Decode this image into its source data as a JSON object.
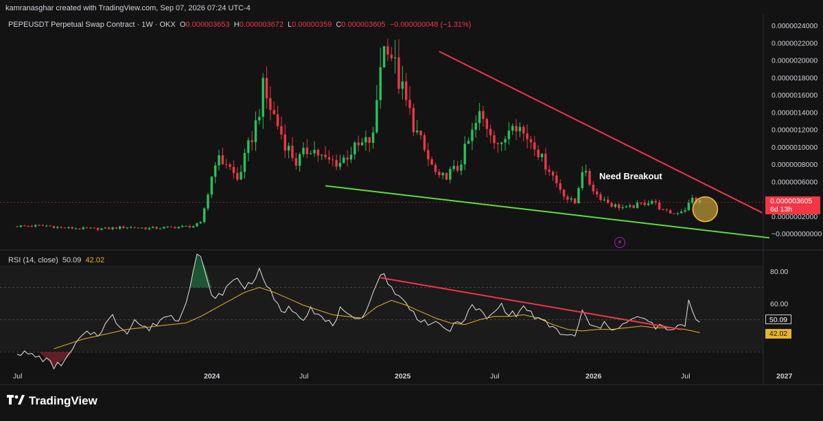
{
  "banner": "kamranasghar created with TradingView.com, Sep 07, 2026 07:24 UTC-4",
  "legend": {
    "symbol": "PEPEUSDT Perpetual Swap Contract · 1W · OKX",
    "o_label": "O",
    "o_value": "0.000003653",
    "h_label": "H",
    "h_value": "0.000003672",
    "l_label": "L",
    "l_value": "0.00000359",
    "c_label": "C",
    "c_value": "0.000003605",
    "change": "−0.000000048 (−1.31%)"
  },
  "rsi_legend": {
    "label": "RSI (14, close)",
    "rsi_value": "50.09",
    "ma_value": "42.02"
  },
  "annotation": "Need Breakout",
  "price_tag": {
    "price": "0.000003605",
    "countdown": "6d 13h"
  },
  "rsi_tags": {
    "rsi": "50.09",
    "ma": "42.02"
  },
  "footer": {
    "brand": "TradingView"
  },
  "colors": {
    "up": "#22c55e",
    "down": "#f23645",
    "resistance": "#f23645",
    "support": "#5fe03a",
    "rsi_line": "#e6e6e6",
    "rsi_ma": "#e8b32c",
    "highlight": "#f5c542"
  },
  "chart_data": [
    {
      "type": "candlestick",
      "title": "PEPEUSDT Perpetual Swap Contract · 1W · OKX",
      "price_ticks": [
        "0.0000024000",
        "0.0000022000",
        "0.0000020000",
        "0.0000018000",
        "0.0000016000",
        "0.0000014000",
        "0.0000012000",
        "0.0000010000",
        "0.0000008000",
        "0.0000006000",
        "0.0000004000",
        "0.0000002000",
        "−0.0000000000"
      ],
      "price_tick_values": [
        24,
        22,
        20,
        18,
        16,
        14,
        12,
        10,
        8,
        6,
        4,
        2,
        0
      ],
      "time_ticks": [
        "Jul",
        "2024",
        "Jul",
        "2025",
        "Jul",
        "2026",
        "Jul",
        "2027"
      ],
      "time_tick_weeks": [
        0,
        52,
        78,
        104,
        130,
        156,
        182,
        208
      ],
      "last_week": 186,
      "price_profile": [
        [
          0,
          0.85
        ],
        [
          8,
          0.9
        ],
        [
          12,
          0.65
        ],
        [
          18,
          0.55
        ],
        [
          24,
          0.55
        ],
        [
          30,
          0.75
        ],
        [
          36,
          0.6
        ],
        [
          42,
          0.7
        ],
        [
          48,
          0.85
        ],
        [
          50,
          1.2
        ],
        [
          52,
          4.6
        ],
        [
          54,
          8.5
        ],
        [
          57,
          8.2
        ],
        [
          60,
          6.2
        ],
        [
          62,
          8.6
        ],
        [
          65,
          12.6
        ],
        [
          67,
          16.5
        ],
        [
          70,
          13.5
        ],
        [
          73,
          10.5
        ],
        [
          76,
          8.2
        ],
        [
          80,
          10.0
        ],
        [
          84,
          8.4
        ],
        [
          88,
          8.2
        ],
        [
          91,
          9.5
        ],
        [
          94,
          10.2
        ],
        [
          97,
          11.0
        ],
        [
          99,
          20.0
        ],
        [
          101,
          22.5
        ],
        [
          103,
          19.0
        ],
        [
          106,
          15.0
        ],
        [
          109,
          11.5
        ],
        [
          112,
          8.5
        ],
        [
          115,
          6.2
        ],
        [
          117,
          6.8
        ],
        [
          120,
          7.5
        ],
        [
          123,
          10.5
        ],
        [
          126,
          13.5
        ],
        [
          129,
          12.0
        ],
        [
          132,
          9.8
        ],
        [
          135,
          13.6
        ],
        [
          138,
          11.5
        ],
        [
          141,
          10.5
        ],
        [
          143,
          8.5
        ],
        [
          145,
          7.5
        ],
        [
          147,
          5.8
        ],
        [
          150,
          4.0
        ],
        [
          152,
          3.5
        ],
        [
          154,
          7.5
        ],
        [
          156,
          5.8
        ],
        [
          158,
          4.5
        ],
        [
          162,
          3.3
        ],
        [
          166,
          2.9
        ],
        [
          170,
          3.4
        ],
        [
          173,
          3.8
        ],
        [
          176,
          2.6
        ],
        [
          179,
          2.3
        ],
        [
          182,
          2.8
        ],
        [
          184,
          4.0
        ],
        [
          186,
          3.6
        ]
      ],
      "resistance_line": {
        "from": [
          115,
          21.0
        ],
        "to": [
          203,
          2.4
        ]
      },
      "support_line": {
        "from": [
          84,
          5.5
        ],
        "to": [
          205,
          -0.5
        ]
      },
      "highlight": {
        "week": 186,
        "price": 2.8
      },
      "last_price": 3.605
    },
    {
      "type": "line",
      "title": "RSI (14, close)",
      "ylim": [
        20,
        100
      ],
      "y_ticks": [
        "80.00",
        "60.00"
      ],
      "y_tick_values": [
        80,
        60
      ],
      "rsi_profile": [
        [
          0,
          30
        ],
        [
          4,
          28
        ],
        [
          8,
          25
        ],
        [
          10,
          21
        ],
        [
          12,
          23
        ],
        [
          14,
          27
        ],
        [
          16,
          35
        ],
        [
          18,
          40
        ],
        [
          20,
          42
        ],
        [
          22,
          41
        ],
        [
          24,
          47
        ],
        [
          26,
          52
        ],
        [
          28,
          46
        ],
        [
          30,
          43
        ],
        [
          32,
          50
        ],
        [
          34,
          46
        ],
        [
          36,
          44
        ],
        [
          38,
          48
        ],
        [
          40,
          52
        ],
        [
          42,
          52
        ],
        [
          44,
          50
        ],
        [
          46,
          62
        ],
        [
          48,
          80
        ],
        [
          49,
          91
        ],
        [
          50,
          88
        ],
        [
          52,
          72
        ],
        [
          54,
          62
        ],
        [
          56,
          67
        ],
        [
          58,
          72
        ],
        [
          60,
          76
        ],
        [
          62,
          70
        ],
        [
          64,
          74
        ],
        [
          66,
          80
        ],
        [
          68,
          72
        ],
        [
          70,
          62
        ],
        [
          72,
          55
        ],
        [
          74,
          57
        ],
        [
          76,
          55
        ],
        [
          78,
          51
        ],
        [
          80,
          58
        ],
        [
          82,
          53
        ],
        [
          84,
          49
        ],
        [
          86,
          47
        ],
        [
          88,
          56
        ],
        [
          90,
          52
        ],
        [
          92,
          49
        ],
        [
          94,
          53
        ],
        [
          96,
          60
        ],
        [
          98,
          74
        ],
        [
          100,
          78
        ],
        [
          102,
          70
        ],
        [
          104,
          64
        ],
        [
          106,
          60
        ],
        [
          108,
          54
        ],
        [
          110,
          50
        ],
        [
          112,
          48
        ],
        [
          114,
          47
        ],
        [
          116,
          45
        ],
        [
          118,
          44
        ],
        [
          120,
          48
        ],
        [
          122,
          51
        ],
        [
          124,
          58
        ],
        [
          126,
          56
        ],
        [
          128,
          50
        ],
        [
          130,
          55
        ],
        [
          132,
          59
        ],
        [
          134,
          54
        ],
        [
          136,
          53
        ],
        [
          138,
          58
        ],
        [
          140,
          54
        ],
        [
          142,
          50
        ],
        [
          144,
          48
        ],
        [
          146,
          45
        ],
        [
          148,
          42
        ],
        [
          150,
          40
        ],
        [
          152,
          39
        ],
        [
          154,
          56
        ],
        [
          156,
          46
        ],
        [
          158,
          45
        ],
        [
          160,
          47
        ],
        [
          162,
          45
        ],
        [
          164,
          46
        ],
        [
          166,
          48
        ],
        [
          168,
          50
        ],
        [
          170,
          52
        ],
        [
          172,
          48
        ],
        [
          174,
          46
        ],
        [
          176,
          45
        ],
        [
          178,
          43
        ],
        [
          180,
          45
        ],
        [
          182,
          47
        ],
        [
          183,
          63
        ],
        [
          184,
          55
        ],
        [
          185,
          51
        ],
        [
          186,
          50
        ]
      ],
      "ma_profile": [
        [
          10,
          32
        ],
        [
          14,
          35
        ],
        [
          18,
          38
        ],
        [
          22,
          40
        ],
        [
          26,
          42
        ],
        [
          30,
          44
        ],
        [
          34,
          45
        ],
        [
          38,
          46
        ],
        [
          42,
          47
        ],
        [
          46,
          48
        ],
        [
          50,
          52
        ],
        [
          54,
          57
        ],
        [
          58,
          62
        ],
        [
          62,
          67
        ],
        [
          66,
          70
        ],
        [
          70,
          67
        ],
        [
          74,
          63
        ],
        [
          78,
          59
        ],
        [
          82,
          56
        ],
        [
          86,
          53
        ],
        [
          90,
          52
        ],
        [
          94,
          51
        ],
        [
          98,
          58
        ],
        [
          102,
          62
        ],
        [
          106,
          59
        ],
        [
          110,
          55
        ],
        [
          114,
          51
        ],
        [
          118,
          48
        ],
        [
          122,
          47
        ],
        [
          126,
          50
        ],
        [
          130,
          52
        ],
        [
          134,
          52
        ],
        [
          138,
          53
        ],
        [
          142,
          51
        ],
        [
          146,
          47
        ],
        [
          150,
          44
        ],
        [
          154,
          43
        ],
        [
          158,
          44
        ],
        [
          162,
          44
        ],
        [
          166,
          45
        ],
        [
          170,
          46
        ],
        [
          174,
          45
        ],
        [
          178,
          45
        ],
        [
          182,
          44
        ],
        [
          186,
          42
        ]
      ],
      "rsi_trend_line": {
        "from": [
          99,
          76
        ],
        "to": [
          181,
          44
        ]
      },
      "last_rsi": 50.09,
      "last_ma": 42.02
    }
  ]
}
